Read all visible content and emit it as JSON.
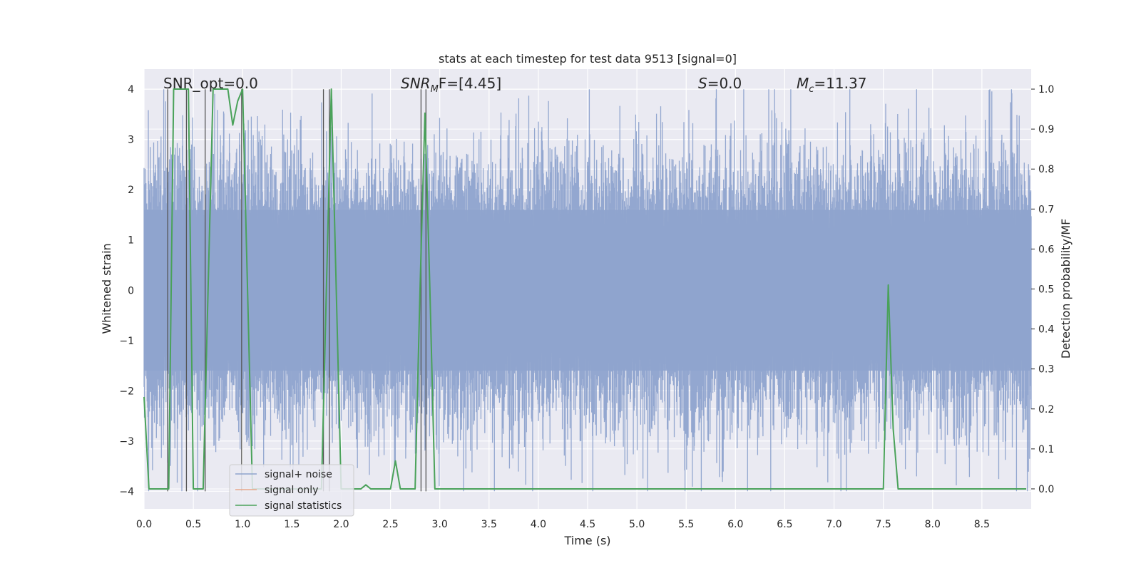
{
  "chart_data": {
    "type": "line",
    "title": "stats at each timestep for test data 9513 [signal=0]",
    "xlabel": "Time (s)",
    "ylabel": "Whitened strain",
    "y2label": "Detection probability/MF",
    "xlim": [
      0,
      9.0
    ],
    "ylim": [
      -4.35,
      4.4
    ],
    "y2lim": [
      -0.05,
      1.05
    ],
    "xticks": [
      "0.0",
      "0.5",
      "1.0",
      "1.5",
      "2.0",
      "2.5",
      "3.0",
      "3.5",
      "4.0",
      "4.5",
      "5.0",
      "5.5",
      "6.0",
      "6.5",
      "7.0",
      "7.5",
      "8.0",
      "8.5"
    ],
    "yticks": [
      "4",
      "3",
      "2",
      "1",
      "0",
      "−1",
      "−2",
      "−3",
      "−4"
    ],
    "y2ticks": [
      "1.0",
      "0.9",
      "0.8",
      "0.7",
      "0.6",
      "0.5",
      "0.4",
      "0.3",
      "0.2",
      "0.1",
      "0.0"
    ],
    "grid": true,
    "legend_position": "lower-left",
    "annotations": {
      "snr_opt": "SNR_opt=0.0",
      "snr_mf_base": "SNR",
      "snr_mf_sub": "M",
      "snr_mf_rest": "F=[4.45]",
      "s_sym": "S",
      "s_val": "=0.0",
      "mc_base": "M",
      "mc_sub": "c",
      "mc_val": "=11.37"
    },
    "series": [
      {
        "name": "signal+ noise",
        "color": "#8ea3cd",
        "description_values": "whitened strain noise, ~±2 typical, peaks near ±4",
        "envelope_level": 1.6
      },
      {
        "name": "signal only",
        "color": "#e8a88b",
        "values": []
      },
      {
        "name": "signal statistics",
        "color": "#4aa25a",
        "axis": "right",
        "x": [
          0.0,
          0.05,
          0.1,
          0.15,
          0.2,
          0.25,
          0.3,
          0.35,
          0.4,
          0.45,
          0.5,
          0.55,
          0.6,
          0.65,
          0.7,
          0.75,
          0.8,
          0.85,
          0.9,
          0.95,
          1.0,
          1.05,
          1.1,
          1.15,
          1.2,
          1.25,
          1.3,
          1.35,
          1.4,
          1.45,
          1.5,
          1.55,
          1.6,
          1.65,
          1.7,
          1.75,
          1.8,
          1.85,
          1.9,
          1.95,
          2.0,
          2.05,
          2.1,
          2.15,
          2.2,
          2.25,
          2.3,
          2.35,
          2.4,
          2.45,
          2.5,
          2.55,
          2.6,
          2.65,
          2.7,
          2.75,
          2.8,
          2.85,
          2.9,
          2.95,
          3.0,
          3.1,
          3.5,
          4.0,
          4.5,
          5.0,
          5.5,
          6.0,
          6.5,
          7.0,
          7.45,
          7.5,
          7.55,
          7.6,
          7.65,
          7.7,
          7.8,
          8.0,
          8.5,
          8.95
        ],
        "values": [
          0.23,
          0.0,
          0.0,
          0.0,
          0.0,
          0.0,
          1.0,
          1.0,
          1.0,
          1.0,
          0.0,
          0.0,
          0.0,
          0.5,
          1.0,
          1.0,
          1.0,
          1.0,
          0.91,
          0.97,
          1.0,
          0.5,
          0.0,
          0.0,
          0.0,
          0.0,
          0.0,
          0.0,
          0.0,
          0.0,
          0.0,
          0.0,
          0.0,
          0.0,
          0.0,
          0.0,
          0.0,
          0.5,
          1.0,
          0.5,
          0.0,
          0.0,
          0.0,
          0.0,
          0.0,
          0.01,
          0.0,
          0.0,
          0.0,
          0.0,
          0.0,
          0.07,
          0.0,
          0.0,
          0.0,
          0.0,
          0.5,
          0.94,
          0.5,
          0.0,
          0.0,
          0.0,
          0.0,
          0.0,
          0.0,
          0.0,
          0.0,
          0.0,
          0.0,
          0.0,
          0.0,
          0.0,
          0.51,
          0.15,
          0.0,
          0.0,
          0.0,
          0.0,
          0.0,
          0.0
        ]
      }
    ],
    "vlines_x": [
      0.24,
      0.43,
      0.62,
      0.99,
      1.82,
      1.88,
      2.81,
      2.86
    ]
  }
}
